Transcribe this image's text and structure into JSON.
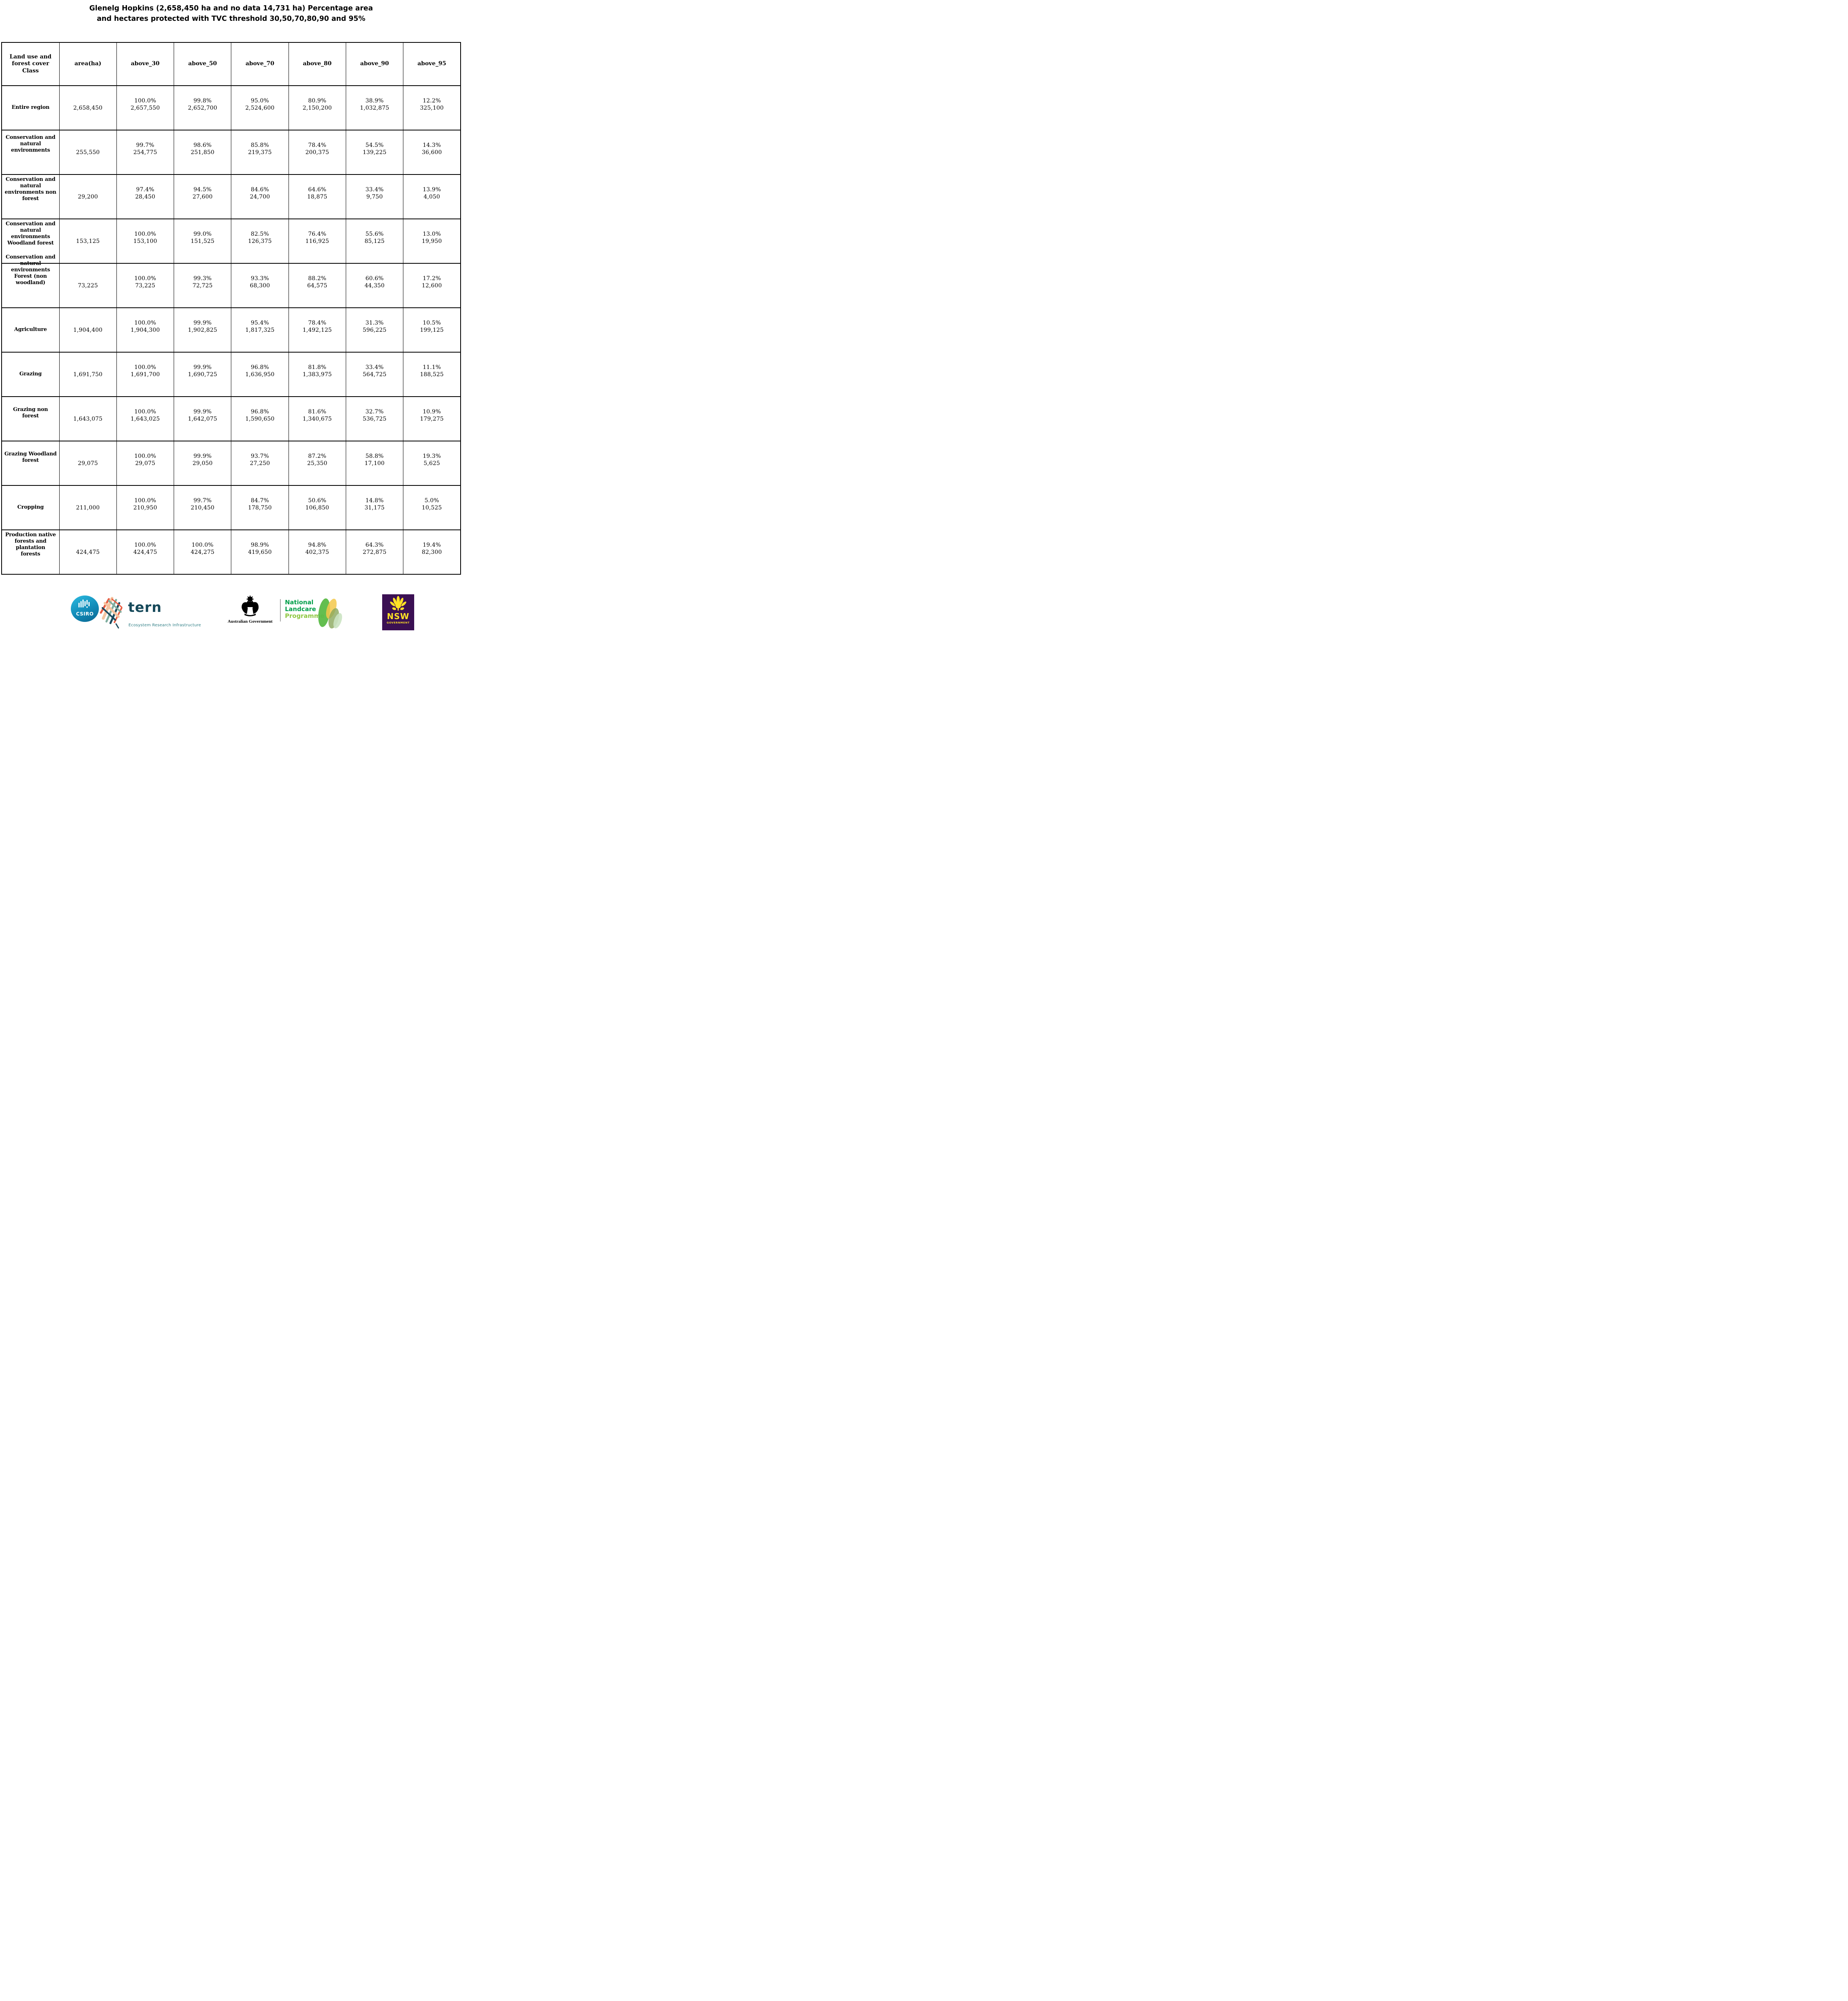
{
  "title": {
    "line1": "Glenelg Hopkins (2,658,450 ha and no data 14,731 ha) Percentage area",
    "line2": "and hectares protected with TVC threshold 30,50,70,80,90 and 95%"
  },
  "chart_data": {
    "type": "table",
    "columns": [
      "Land use and\nforest cover\nClass",
      "area(ha)",
      "above_30",
      "above_50",
      "above_70",
      "above_80",
      "above_90",
      "above_95"
    ],
    "rows": [
      {
        "label": "Entire region",
        "style": "short",
        "area": "2,658,450",
        "cells": [
          [
            "100.0%",
            "2,657,550"
          ],
          [
            "99.8%",
            "2,652,700"
          ],
          [
            "95.0%",
            "2,524,600"
          ],
          [
            "80.9%",
            "2,150,200"
          ],
          [
            "38.9%",
            "1,032,875"
          ],
          [
            "12.2%",
            "325,100"
          ]
        ]
      },
      {
        "label": "Conservation and\nnatural\nenvironments",
        "style": "l3",
        "area": "255,550",
        "cells": [
          [
            "99.7%",
            "254,775"
          ],
          [
            "98.6%",
            "251,850"
          ],
          [
            "85.8%",
            "219,375"
          ],
          [
            "78.4%",
            "200,375"
          ],
          [
            "54.5%",
            "139,225"
          ],
          [
            "14.3%",
            "36,600"
          ]
        ]
      },
      {
        "label": "Conservation and\nnatural\nenvironments non\nforest",
        "style": "l4",
        "area": "29,200",
        "cells": [
          [
            "97.4%",
            "28,450"
          ],
          [
            "94.5%",
            "27,600"
          ],
          [
            "84.6%",
            "24,700"
          ],
          [
            "64.6%",
            "18,875"
          ],
          [
            "33.4%",
            "9,750"
          ],
          [
            "13.9%",
            "4,050"
          ]
        ]
      },
      {
        "label": "Conservation and\nnatural\nenvironments\nWoodland forest",
        "style": "l4",
        "area": "153,125",
        "cells": [
          [
            "100.0%",
            "153,100"
          ],
          [
            "99.0%",
            "151,525"
          ],
          [
            "82.5%",
            "126,375"
          ],
          [
            "76.4%",
            "116,925"
          ],
          [
            "55.6%",
            "85,125"
          ],
          [
            "13.0%",
            "19,950"
          ]
        ]
      },
      {
        "label": "Conservation and\nnatural\nenvironments\nForest (non\nwoodland)",
        "style": "overflow",
        "area": "73,225",
        "cells": [
          [
            "100.0%",
            "73,225"
          ],
          [
            "99.3%",
            "72,725"
          ],
          [
            "93.3%",
            "68,300"
          ],
          [
            "88.2%",
            "64,575"
          ],
          [
            "60.6%",
            "44,350"
          ],
          [
            "17.2%",
            "12,600"
          ]
        ]
      },
      {
        "label": "Agriculture",
        "style": "short",
        "area": "1,904,400",
        "cells": [
          [
            "100.0%",
            "1,904,300"
          ],
          [
            "99.9%",
            "1,902,825"
          ],
          [
            "95.4%",
            "1,817,325"
          ],
          [
            "78.4%",
            "1,492,125"
          ],
          [
            "31.3%",
            "596,225"
          ],
          [
            "10.5%",
            "199,125"
          ]
        ]
      },
      {
        "label": "Grazing",
        "style": "short",
        "area": "1,691,750",
        "cells": [
          [
            "100.0%",
            "1,691,700"
          ],
          [
            "99.9%",
            "1,690,725"
          ],
          [
            "96.8%",
            "1,636,950"
          ],
          [
            "81.8%",
            "1,383,975"
          ],
          [
            "33.4%",
            "564,725"
          ],
          [
            "11.1%",
            "188,525"
          ]
        ]
      },
      {
        "label": "Grazing non\nforest",
        "style": "l2",
        "area": "1,643,075",
        "cells": [
          [
            "100.0%",
            "1,643,025"
          ],
          [
            "99.9%",
            "1,642,075"
          ],
          [
            "96.8%",
            "1,590,650"
          ],
          [
            "81.6%",
            "1,340,675"
          ],
          [
            "32.7%",
            "536,725"
          ],
          [
            "10.9%",
            "179,275"
          ]
        ]
      },
      {
        "label": "Grazing Woodland\nforest",
        "style": "l2",
        "area": "29,075",
        "cells": [
          [
            "100.0%",
            "29,075"
          ],
          [
            "99.9%",
            "29,050"
          ],
          [
            "93.7%",
            "27,250"
          ],
          [
            "87.2%",
            "25,350"
          ],
          [
            "58.8%",
            "17,100"
          ],
          [
            "19.3%",
            "5,625"
          ]
        ]
      },
      {
        "label": "Cropping",
        "style": "short",
        "area": "211,000",
        "cells": [
          [
            "100.0%",
            "210,950"
          ],
          [
            "99.7%",
            "210,450"
          ],
          [
            "84.7%",
            "178,750"
          ],
          [
            "50.6%",
            "106,850"
          ],
          [
            "14.8%",
            "31,175"
          ],
          [
            "5.0%",
            "10,525"
          ]
        ]
      },
      {
        "label": "Production native\nforests and\nplantation\nforests",
        "style": "l4",
        "area": "424,475",
        "cells": [
          [
            "100.0%",
            "424,475"
          ],
          [
            "100.0%",
            "424,275"
          ],
          [
            "98.9%",
            "419,650"
          ],
          [
            "94.8%",
            "402,375"
          ],
          [
            "64.3%",
            "272,875"
          ],
          [
            "19.4%",
            "82,300"
          ]
        ]
      }
    ]
  },
  "footer": {
    "csiro_label": "CSIRO",
    "tern_label": "tern",
    "tern_tagline": "Ecosystem Research Infrastructure",
    "ausgov_label": "Australian Government",
    "landcare_line1": "National",
    "landcare_line2": "Landcare",
    "landcare_line3": "Programme",
    "nsw_label": "NSW",
    "nsw_sub": "GOVERNMENT",
    "colors": {
      "csiro_teal": "#128bb8",
      "tern_dark": "#16495a",
      "tern_teal": "#2f7e85",
      "landcare_green": "#009e49",
      "landcare_light_green": "#8dc63f",
      "nsw_purple": "#3b1053",
      "nsw_yellow": "#ffe225"
    }
  }
}
